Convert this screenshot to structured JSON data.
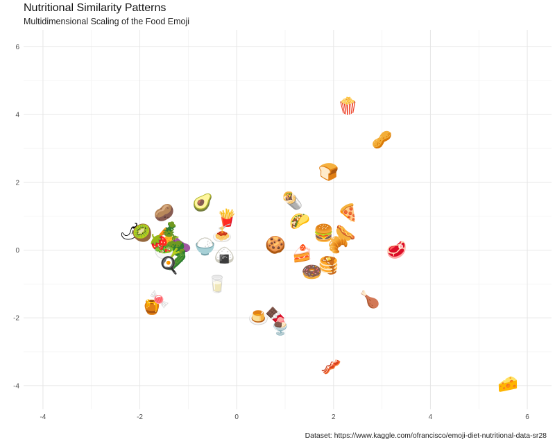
{
  "title": "Nutritional Similarity Patterns",
  "subtitle": "Multidimensional Scaling of the Food Emoji",
  "caption": "Dataset: https://www.kaggle.com/ofrancisco/emoji-diet-nutritional-data-sr28",
  "chart_data": {
    "type": "scatter",
    "title": "Nutritional Similarity Patterns",
    "subtitle": "Multidimensional Scaling of the Food Emoji",
    "xlabel": "",
    "ylabel": "",
    "xlim": [
      -4.4,
      6.5
    ],
    "ylim": [
      -4.7,
      6.5
    ],
    "x_ticks": [
      -4,
      -2,
      0,
      2,
      4,
      6
    ],
    "y_ticks": [
      -4,
      -2,
      0,
      2,
      4,
      6
    ],
    "grid": true,
    "marker": "emoji",
    "points": [
      {
        "emoji": "🍿",
        "name": "popcorn",
        "x": 2.3,
        "y": 4.25
      },
      {
        "emoji": "🥜",
        "name": "peanuts",
        "x": 3.0,
        "y": 3.25
      },
      {
        "emoji": "🍞",
        "name": "bread",
        "x": 1.9,
        "y": 2.3
      },
      {
        "emoji": "🥑",
        "name": "avocado",
        "x": -0.7,
        "y": 1.4
      },
      {
        "emoji": "🌯",
        "name": "burrito",
        "x": 1.15,
        "y": 1.45
      },
      {
        "emoji": "🍕",
        "name": "pizza",
        "x": 2.3,
        "y": 1.1
      },
      {
        "emoji": "🍟",
        "name": "fries",
        "x": -0.2,
        "y": 0.95
      },
      {
        "emoji": "🌮",
        "name": "taco",
        "x": 1.3,
        "y": 0.85
      },
      {
        "emoji": "🥔",
        "name": "potato",
        "x": -1.5,
        "y": 1.1
      },
      {
        "emoji": "🥕",
        "name": "carrot",
        "x": -1.45,
        "y": 0.6
      },
      {
        "emoji": "🌶",
        "name": "hot pepper",
        "x": -2.2,
        "y": 0.55
      },
      {
        "emoji": "🥝",
        "name": "kiwi",
        "x": -1.95,
        "y": 0.5
      },
      {
        "emoji": "🍔",
        "name": "hamburger",
        "x": 1.8,
        "y": 0.5
      },
      {
        "emoji": "🌭",
        "name": "hot dog",
        "x": 2.25,
        "y": 0.5
      },
      {
        "emoji": "🥐",
        "name": "croissant",
        "x": 2.1,
        "y": 0.15
      },
      {
        "emoji": "🍍",
        "name": "pineapple",
        "x": -1.4,
        "y": 0.4
      },
      {
        "emoji": "🍓",
        "name": "strawberry",
        "x": -1.6,
        "y": 0.2
      },
      {
        "emoji": "🍆",
        "name": "eggplant",
        "x": -1.15,
        "y": 0.2
      },
      {
        "emoji": "🥦",
        "name": "broccoli",
        "x": -1.25,
        "y": 0.0
      },
      {
        "emoji": "🥗",
        "name": "salad",
        "x": -1.5,
        "y": -0.05
      },
      {
        "emoji": "🍚",
        "name": "cooked rice",
        "x": -0.65,
        "y": 0.1
      },
      {
        "emoji": "🍝",
        "name": "spaghetti",
        "x": -0.3,
        "y": 0.5
      },
      {
        "emoji": "🍙",
        "name": "rice ball",
        "x": -0.25,
        "y": -0.15
      },
      {
        "emoji": "🍪",
        "name": "cookie",
        "x": 0.8,
        "y": 0.15
      },
      {
        "emoji": "🍰",
        "name": "shortcake",
        "x": 1.35,
        "y": -0.1
      },
      {
        "emoji": "🥩",
        "name": "cut of meat",
        "x": 3.3,
        "y": -0.0
      },
      {
        "emoji": "🥞",
        "name": "pancakes",
        "x": 1.9,
        "y": -0.45
      },
      {
        "emoji": "🍩",
        "name": "doughnut",
        "x": 1.55,
        "y": -0.65
      },
      {
        "emoji": "🥒",
        "name": "cucumber",
        "x": -1.25,
        "y": -0.35
      },
      {
        "emoji": "🧀",
        "name": "cheese wedge",
        "x": 5.6,
        "y": -3.95
      },
      {
        "emoji": "🍳",
        "name": "cooking",
        "x": -1.4,
        "y": -0.45
      },
      {
        "emoji": "🥛",
        "name": "glass of milk",
        "x": -0.4,
        "y": -1.0
      },
      {
        "emoji": "🍯",
        "name": "honey pot",
        "x": -1.75,
        "y": -1.65
      },
      {
        "emoji": "🍬",
        "name": "candy",
        "x": -1.6,
        "y": -1.45
      },
      {
        "emoji": "🍗",
        "name": "poultry leg",
        "x": 2.75,
        "y": -1.45
      },
      {
        "emoji": "🍮",
        "name": "custard",
        "x": 0.45,
        "y": -2.0
      },
      {
        "emoji": "🍫",
        "name": "chocolate bar",
        "x": 0.8,
        "y": -1.95
      },
      {
        "emoji": "🍨",
        "name": "ice cream",
        "x": 0.9,
        "y": -2.25
      },
      {
        "emoji": "🥓",
        "name": "bacon",
        "x": 1.95,
        "y": -3.45
      }
    ]
  }
}
